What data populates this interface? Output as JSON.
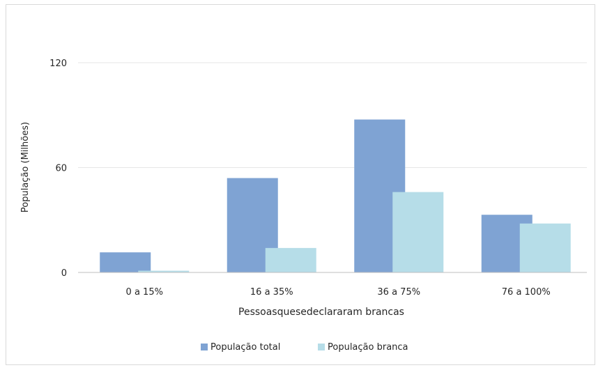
{
  "chart_data": {
    "type": "bar",
    "title": "",
    "xlabel": "Pessoasquesedeclararam brancas",
    "ylabel": "População (Milhões)",
    "ylim": [
      0,
      120
    ],
    "yticks": [
      "0",
      "60",
      "120"
    ],
    "grid": true,
    "legend_position": "bottom",
    "categories": [
      "0 a 15%",
      "16 a 35%",
      "36 a 75%",
      "76 a 100%"
    ],
    "series": [
      {
        "name": "População total",
        "color": "#7fa3d3",
        "values": [
          11.5,
          54,
          87.5,
          33
        ]
      },
      {
        "name": "População branca",
        "color": "#b6dde8",
        "values": [
          1,
          14,
          46,
          28
        ]
      }
    ]
  }
}
